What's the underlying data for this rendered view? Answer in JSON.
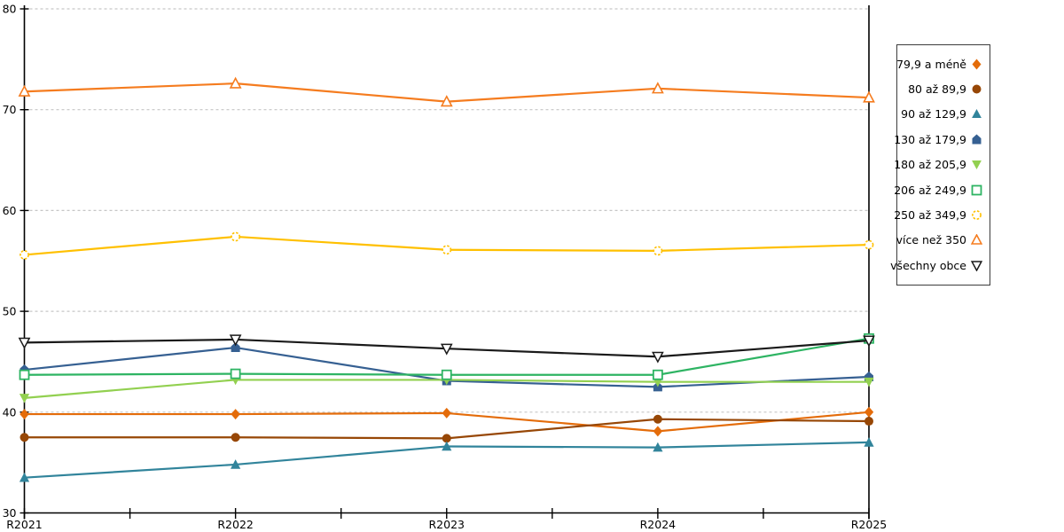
{
  "chart_data": {
    "type": "line",
    "title": "",
    "xlabel": "",
    "ylabel": "",
    "categories": [
      "R2021",
      "R2022",
      "R2023",
      "R2024",
      "R2025"
    ],
    "ylim": [
      30,
      80
    ],
    "y_ticks": [
      30,
      40,
      50,
      60,
      70,
      80
    ],
    "grid": "horizontal-dashed",
    "gridline_color": "#c6c6c6",
    "axis_color": "#000000",
    "legend_position": "right-outside",
    "series": [
      {
        "name": "79,9 a méně",
        "color": "#e46c0a",
        "marker": "diamond",
        "values": [
          39.8,
          39.8,
          39.9,
          38.1,
          40.0
        ]
      },
      {
        "name": "80 až 89,9",
        "color": "#974706",
        "marker": "circle",
        "values": [
          37.5,
          37.5,
          37.4,
          39.3,
          39.1
        ]
      },
      {
        "name": "90 až 129,9",
        "color": "#31849b",
        "marker": "triangle-up",
        "values": [
          33.5,
          34.8,
          36.6,
          36.5,
          37.0
        ]
      },
      {
        "name": "130 až 179,9",
        "color": "#366092",
        "marker": "pentagon",
        "values": [
          44.2,
          46.4,
          43.1,
          42.5,
          43.5
        ]
      },
      {
        "name": "180 až 205,9",
        "color": "#92d050",
        "marker": "triangle-down",
        "values": [
          41.4,
          43.2,
          43.2,
          43.0,
          43.0
        ]
      },
      {
        "name": "206 až 249,9",
        "color": "#2eb463",
        "marker": "square-open",
        "values": [
          43.7,
          43.8,
          43.7,
          43.7,
          47.3
        ]
      },
      {
        "name": "250 až 349,9",
        "color": "#ffc000",
        "marker": "circle-open",
        "values": [
          55.6,
          57.4,
          56.1,
          56.0,
          56.6
        ]
      },
      {
        "name": "více než 350",
        "color": "#f57c1f",
        "marker": "triangle-open",
        "values": [
          71.8,
          72.6,
          70.8,
          72.1,
          71.2
        ]
      },
      {
        "name": "všechny obce",
        "color": "#1a1a1a",
        "marker": "triangle-down-open",
        "values": [
          46.9,
          47.2,
          46.3,
          45.5,
          47.1
        ]
      }
    ]
  }
}
